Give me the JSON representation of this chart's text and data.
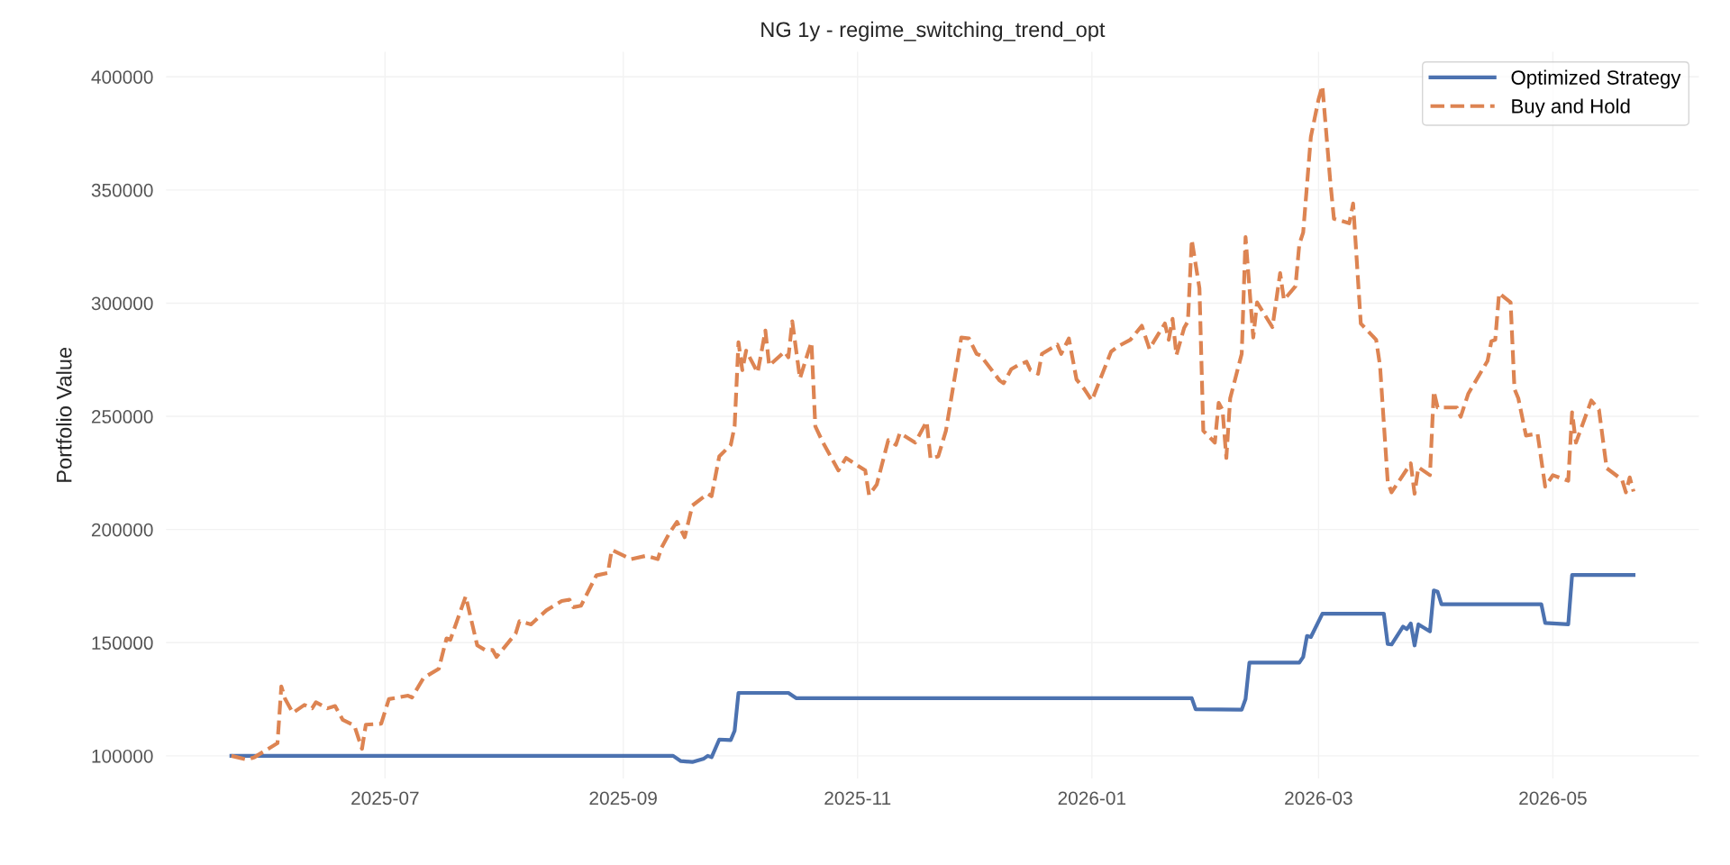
{
  "chart_data": {
    "type": "line",
    "title": "NG 1y - regime_switching_trend_opt",
    "ylabel": "Portfolio Value",
    "xlim": [
      "2025-05-05",
      "2026-06-08"
    ],
    "xticks": [
      {
        "value": "2025-07-01",
        "label": "2025-07"
      },
      {
        "value": "2025-09-01",
        "label": "2025-09"
      },
      {
        "value": "2025-11-01",
        "label": "2025-11"
      },
      {
        "value": "2026-01-01",
        "label": "2026-01"
      },
      {
        "value": "2026-03-01",
        "label": "2026-03"
      },
      {
        "value": "2026-05-01",
        "label": "2026-05"
      }
    ],
    "ylim": [
      90000,
      411000
    ],
    "yticks": [
      100000,
      150000,
      200000,
      250000,
      300000,
      350000,
      400000
    ],
    "grid": true,
    "legend": "top right",
    "series": [
      {
        "name": "Optimized Strategy",
        "color": "#4c72b0",
        "line_style": "solid",
        "x": [
          "2025-05-22",
          "2025-09-14",
          "2025-09-16",
          "2025-09-19",
          "2025-09-22",
          "2025-09-23",
          "2025-09-24",
          "2025-09-26",
          "2025-09-29",
          "2025-09-30",
          "2025-10-01",
          "2025-10-14",
          "2025-10-16",
          "2026-01-27",
          "2026-01-28",
          "2026-02-09",
          "2026-02-10",
          "2026-02-11",
          "2026-02-24",
          "2026-02-25",
          "2026-02-26",
          "2026-02-27",
          "2026-03-02",
          "2026-03-18",
          "2026-03-19",
          "2026-03-20",
          "2026-03-23",
          "2026-03-24",
          "2026-03-25",
          "2026-03-26",
          "2026-03-27",
          "2026-03-30",
          "2026-03-31",
          "2026-04-01",
          "2026-04-02",
          "2026-04-28",
          "2026-04-29",
          "2026-05-05",
          "2026-05-06",
          "2026-05-22"
        ],
        "values": [
          100000,
          100000,
          97700,
          97300,
          98800,
          100000,
          99400,
          107200,
          107000,
          111100,
          127800,
          127800,
          125500,
          125500,
          120600,
          120400,
          125100,
          141200,
          141200,
          143700,
          153000,
          152500,
          162800,
          162800,
          149400,
          149200,
          157100,
          156000,
          158500,
          148800,
          158100,
          155000,
          173100,
          172500,
          167000,
          167000,
          158700,
          158100,
          179900,
          179900
        ]
      },
      {
        "name": "Buy and Hold",
        "color": "#dd8452",
        "line_style": "dashed",
        "x": [
          "2025-05-22",
          "2025-05-26",
          "2025-05-28",
          "2025-06-03",
          "2025-06-04",
          "2025-06-05",
          "2025-06-07",
          "2025-06-10",
          "2025-06-12",
          "2025-06-13",
          "2025-06-16",
          "2025-06-18",
          "2025-06-20",
          "2025-06-23",
          "2025-06-25",
          "2025-06-26",
          "2025-06-30",
          "2025-07-02",
          "2025-07-07",
          "2025-07-08",
          "2025-07-11",
          "2025-07-15",
          "2025-07-17",
          "2025-07-18",
          "2025-07-22",
          "2025-07-25",
          "2025-07-27",
          "2025-07-29",
          "2025-07-30",
          "2025-08-04",
          "2025-08-05",
          "2025-08-08",
          "2025-08-12",
          "2025-08-16",
          "2025-08-18",
          "2025-08-19",
          "2025-08-21",
          "2025-08-25",
          "2025-08-28",
          "2025-08-29",
          "2025-09-03",
          "2025-09-07",
          "2025-09-10",
          "2025-09-11",
          "2025-09-13",
          "2025-09-15",
          "2025-09-17",
          "2025-09-19",
          "2025-09-23",
          "2025-09-24",
          "2025-09-26",
          "2025-09-29",
          "2025-09-30",
          "2025-10-01",
          "2025-10-02",
          "2025-10-03",
          "2025-10-06",
          "2025-10-08",
          "2025-10-09",
          "2025-10-13",
          "2025-10-14",
          "2025-10-15",
          "2025-10-17",
          "2025-10-19",
          "2025-10-20",
          "2025-10-21",
          "2025-10-23",
          "2025-10-27",
          "2025-10-29",
          "2025-11-03",
          "2025-11-04",
          "2025-11-06",
          "2025-11-09",
          "2025-11-11",
          "2025-11-12",
          "2025-11-16",
          "2025-11-19",
          "2025-11-20",
          "2025-11-22",
          "2025-11-24",
          "2025-11-28",
          "2025-11-30",
          "2025-12-02",
          "2025-12-03",
          "2025-12-08",
          "2025-12-09",
          "2025-12-11",
          "2025-12-13",
          "2025-12-15",
          "2025-12-16",
          "2025-12-18",
          "2025-12-19",
          "2025-12-23",
          "2025-12-24",
          "2025-12-26",
          "2025-12-28",
          "2025-12-30",
          "2026-01-01",
          "2026-01-06",
          "2026-01-08",
          "2026-01-11",
          "2026-01-14",
          "2026-01-16",
          "2026-01-17",
          "2026-01-20",
          "2026-01-21",
          "2026-01-22",
          "2026-01-23",
          "2026-01-25",
          "2026-01-26",
          "2026-01-27",
          "2026-01-29",
          "2026-01-30",
          "2026-02-02",
          "2026-02-03",
          "2026-02-04",
          "2026-02-05",
          "2026-02-06",
          "2026-02-09",
          "2026-02-10",
          "2026-02-12",
          "2026-02-13",
          "2026-02-17",
          "2026-02-19",
          "2026-02-20",
          "2026-02-23",
          "2026-02-24",
          "2026-02-25",
          "2026-02-27",
          "2026-03-01",
          "2026-03-02",
          "2026-03-04",
          "2026-03-05",
          "2026-03-09",
          "2026-03-10",
          "2026-03-12",
          "2026-03-16",
          "2026-03-17",
          "2026-03-19",
          "2026-03-20",
          "2026-03-25",
          "2026-03-26",
          "2026-03-27",
          "2026-03-30",
          "2026-03-31",
          "2026-04-01",
          "2026-04-06",
          "2026-04-07",
          "2026-04-09",
          "2026-04-14",
          "2026-04-15",
          "2026-04-16",
          "2026-04-17",
          "2026-04-20",
          "2026-04-21",
          "2026-04-22",
          "2026-04-24",
          "2026-04-27",
          "2026-04-29",
          "2026-05-01",
          "2026-05-05",
          "2026-05-06",
          "2026-05-07",
          "2026-05-11",
          "2026-05-13",
          "2026-05-15",
          "2026-05-19",
          "2026-05-20",
          "2026-05-21",
          "2026-05-22"
        ],
        "values": [
          100000,
          98350,
          99400,
          105600,
          130700,
          125100,
          119000,
          122500,
          121000,
          123700,
          121000,
          122000,
          115900,
          113400,
          103100,
          113800,
          114200,
          125100,
          126600,
          125800,
          134400,
          138500,
          151900,
          151300,
          170500,
          148800,
          146800,
          146800,
          143700,
          154000,
          159500,
          158100,
          164300,
          168400,
          169000,
          165700,
          166300,
          179700,
          180800,
          191000,
          186900,
          188400,
          186900,
          192100,
          198300,
          203400,
          196600,
          210600,
          215800,
          214700,
          232300,
          237400,
          245600,
          282700,
          270400,
          279000,
          269300,
          287900,
          272400,
          278600,
          276100,
          292000,
          266700,
          277600,
          282700,
          245600,
          238400,
          226100,
          231600,
          226100,
          215200,
          219900,
          239500,
          237400,
          242600,
          238400,
          247700,
          231200,
          232300,
          243600,
          284800,
          284400,
          277600,
          276900,
          265800,
          264600,
          270800,
          272800,
          274100,
          270400,
          268800,
          277600,
          281700,
          277600,
          284400,
          266300,
          262100,
          257000,
          278600,
          281100,
          283800,
          290000,
          279700,
          282700,
          291000,
          283800,
          293100,
          277000,
          289000,
          292000,
          328000,
          306500,
          243600,
          238400,
          256000,
          252900,
          231600,
          258000,
          277600,
          329200,
          284800,
          300300,
          289400,
          313300,
          301400,
          307500,
          326100,
          331200,
          373500,
          390000,
          396000,
          354800,
          337300,
          335300,
          344000,
          291000,
          283800,
          272400,
          221300,
          216400,
          229200,
          215800,
          227500,
          224000,
          261100,
          253900,
          253900,
          249800,
          260100,
          274500,
          283200,
          283800,
          304400,
          300300,
          262100,
          258000,
          241500,
          242400,
          218900,
          224000,
          221500,
          251800,
          238400,
          257000,
          252900,
          227100,
          222000,
          216400,
          223000,
          216800
        ]
      }
    ]
  }
}
